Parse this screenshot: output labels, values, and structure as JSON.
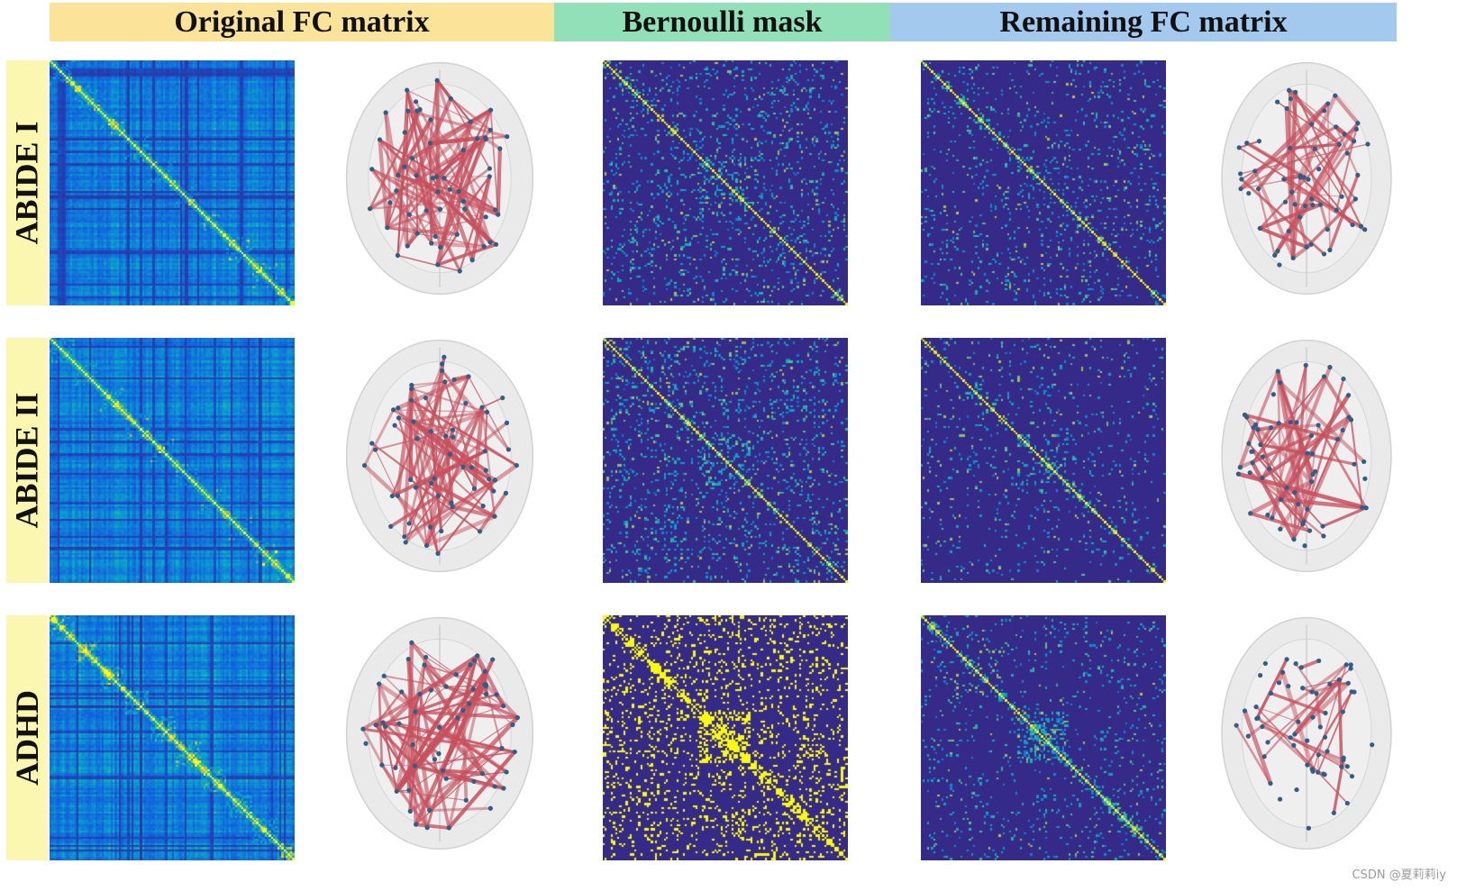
{
  "header": {
    "col1_title": "Original FC matrix",
    "col2_title": "Bernoulli mask",
    "col3_title": "Remaining FC matrix",
    "col1_color": "#fbe39a",
    "col2_color": "#92e0b8",
    "col3_color": "#a3c9ee"
  },
  "rows": [
    {
      "label": "ABIDE I"
    },
    {
      "label": "ABIDE II"
    },
    {
      "label": "ADHD"
    }
  ],
  "colors": {
    "edge": "#c6505e",
    "node": "#2f5f86",
    "brain_fill": "#e4e4e4",
    "matrix_low": "#2e2aa0",
    "matrix_high": "#f6f21a"
  },
  "watermark": "CSDN @夏莉莉iy"
}
